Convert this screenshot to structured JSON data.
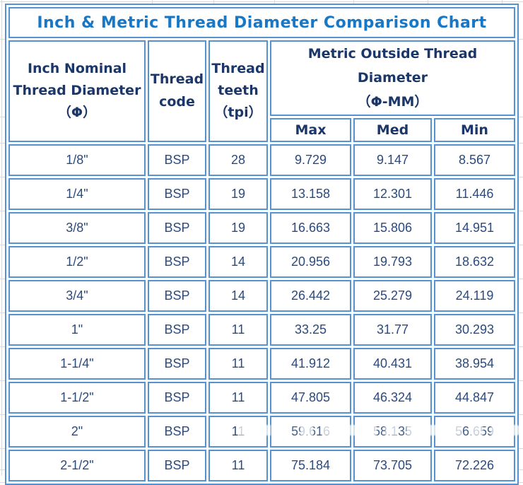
{
  "title": "Inch & Metric Thread Diameter Comparison Chart",
  "colors": {
    "border_blue": "#5592cf",
    "title_blue": "#1778c8",
    "header_navy": "#1b3769",
    "data_navy": "#2b4a7e",
    "gridline_gray": "#d9d9d9"
  },
  "headers": {
    "inch_col": [
      "Inch Nominal",
      "Thread Diameter",
      "（Φ）"
    ],
    "code_col": [
      "Thread",
      "code"
    ],
    "teeth_col": [
      "Thread",
      "teeth",
      "（tpi）"
    ],
    "metric_group": [
      "Metric Outside Thread Diameter",
      "（Φ-MM）"
    ],
    "max": "Max",
    "med": "Med",
    "min": "Min"
  },
  "rows": [
    {
      "inch": "1/8\"",
      "code": "BSP",
      "tpi": "28",
      "max": "9.729",
      "med": "9.147",
      "min": "8.567"
    },
    {
      "inch": "1/4\"",
      "code": "BSP",
      "tpi": "19",
      "max": "13.158",
      "med": "12.301",
      "min": "11.446"
    },
    {
      "inch": "3/8\"",
      "code": "BSP",
      "tpi": "19",
      "max": "16.663",
      "med": "15.806",
      "min": "14.951"
    },
    {
      "inch": "1/2\"",
      "code": "BSP",
      "tpi": "14",
      "max": "20.956",
      "med": "19.793",
      "min": "18.632"
    },
    {
      "inch": "3/4\"",
      "code": "BSP",
      "tpi": "14",
      "max": "26.442",
      "med": "25.279",
      "min": "24.119"
    },
    {
      "inch": "1\"",
      "code": "BSP",
      "tpi": "11",
      "max": "33.25",
      "med": "31.77",
      "min": "30.293"
    },
    {
      "inch": "1-1/4\"",
      "code": "BSP",
      "tpi": "11",
      "max": "41.912",
      "med": "40.431",
      "min": "38.954"
    },
    {
      "inch": "1-1/2\"",
      "code": "BSP",
      "tpi": "11",
      "max": "47.805",
      "med": "46.324",
      "min": "44.847"
    },
    {
      "inch": "2\"",
      "code": "BSP",
      "tpi": "11",
      "max": "59.616",
      "med": "58.135",
      "min": "56.659"
    },
    {
      "inch": "2-1/2\"",
      "code": "BSP",
      "tpi": "11",
      "max": "75.184",
      "med": "73.705",
      "min": "72.226"
    }
  ],
  "chart_data": {
    "type": "table",
    "title": "Inch & Metric Thread Diameter Comparison Chart",
    "columns": [
      "Inch Nominal Thread Diameter （Φ）",
      "Thread code",
      "Thread teeth （tpi）",
      "Max （Φ-MM）",
      "Med （Φ-MM）",
      "Min （Φ-MM）"
    ],
    "rows": [
      [
        "1/8\"",
        "BSP",
        28,
        9.729,
        9.147,
        8.567
      ],
      [
        "1/4\"",
        "BSP",
        19,
        13.158,
        12.301,
        11.446
      ],
      [
        "3/8\"",
        "BSP",
        19,
        16.663,
        15.806,
        14.951
      ],
      [
        "1/2\"",
        "BSP",
        14,
        20.956,
        19.793,
        18.632
      ],
      [
        "3/4\"",
        "BSP",
        14,
        26.442,
        25.279,
        24.119
      ],
      [
        "1\"",
        "BSP",
        11,
        33.25,
        31.77,
        30.293
      ],
      [
        "1-1/4\"",
        "BSP",
        11,
        41.912,
        40.431,
        38.954
      ],
      [
        "1-1/2\"",
        "BSP",
        11,
        47.805,
        46.324,
        44.847
      ],
      [
        "2\"",
        "BSP",
        11,
        59.616,
        58.135,
        56.659
      ],
      [
        "2-1/2\"",
        "BSP",
        11,
        75.184,
        73.705,
        72.226
      ]
    ]
  }
}
